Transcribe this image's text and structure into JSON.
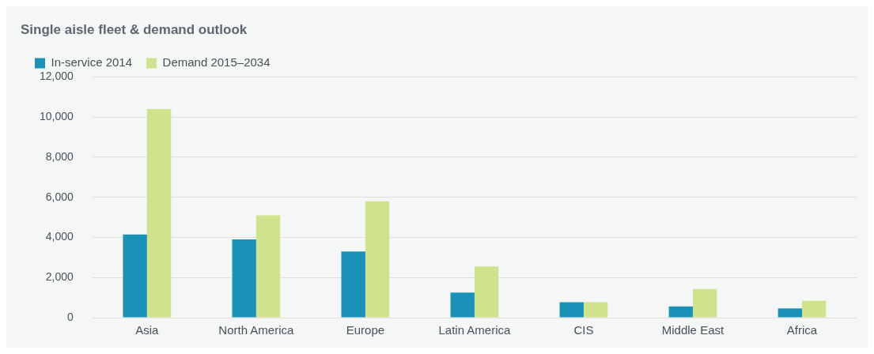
{
  "chart_data": {
    "type": "bar",
    "title": "Single aisle fleet & demand outlook",
    "categories": [
      "Asia",
      "North America",
      "Europe",
      "Latin America",
      "CIS",
      "Middle East",
      "Africa"
    ],
    "series": [
      {
        "name": "In-service 2014",
        "color": "#1a91b6",
        "values": [
          4150,
          3900,
          3300,
          1250,
          770,
          560,
          460
        ]
      },
      {
        "name": "Demand 2015–2034",
        "color": "#cfe28c",
        "values": [
          10400,
          5100,
          5800,
          2550,
          770,
          1430,
          840
        ]
      }
    ],
    "ylim": [
      0,
      12000
    ],
    "yticks": [
      0,
      {
        "value": 2000,
        "label": "2,000"
      },
      {
        "value": 4000,
        "label": "4,000"
      },
      {
        "value": 6000,
        "label": "6,000"
      },
      {
        "value": 8000,
        "label": "8,000"
      },
      {
        "value": 10000,
        "label": "10,000"
      },
      {
        "value": 12000,
        "label": "12,000"
      }
    ],
    "grid": "y",
    "legend": "top left"
  }
}
